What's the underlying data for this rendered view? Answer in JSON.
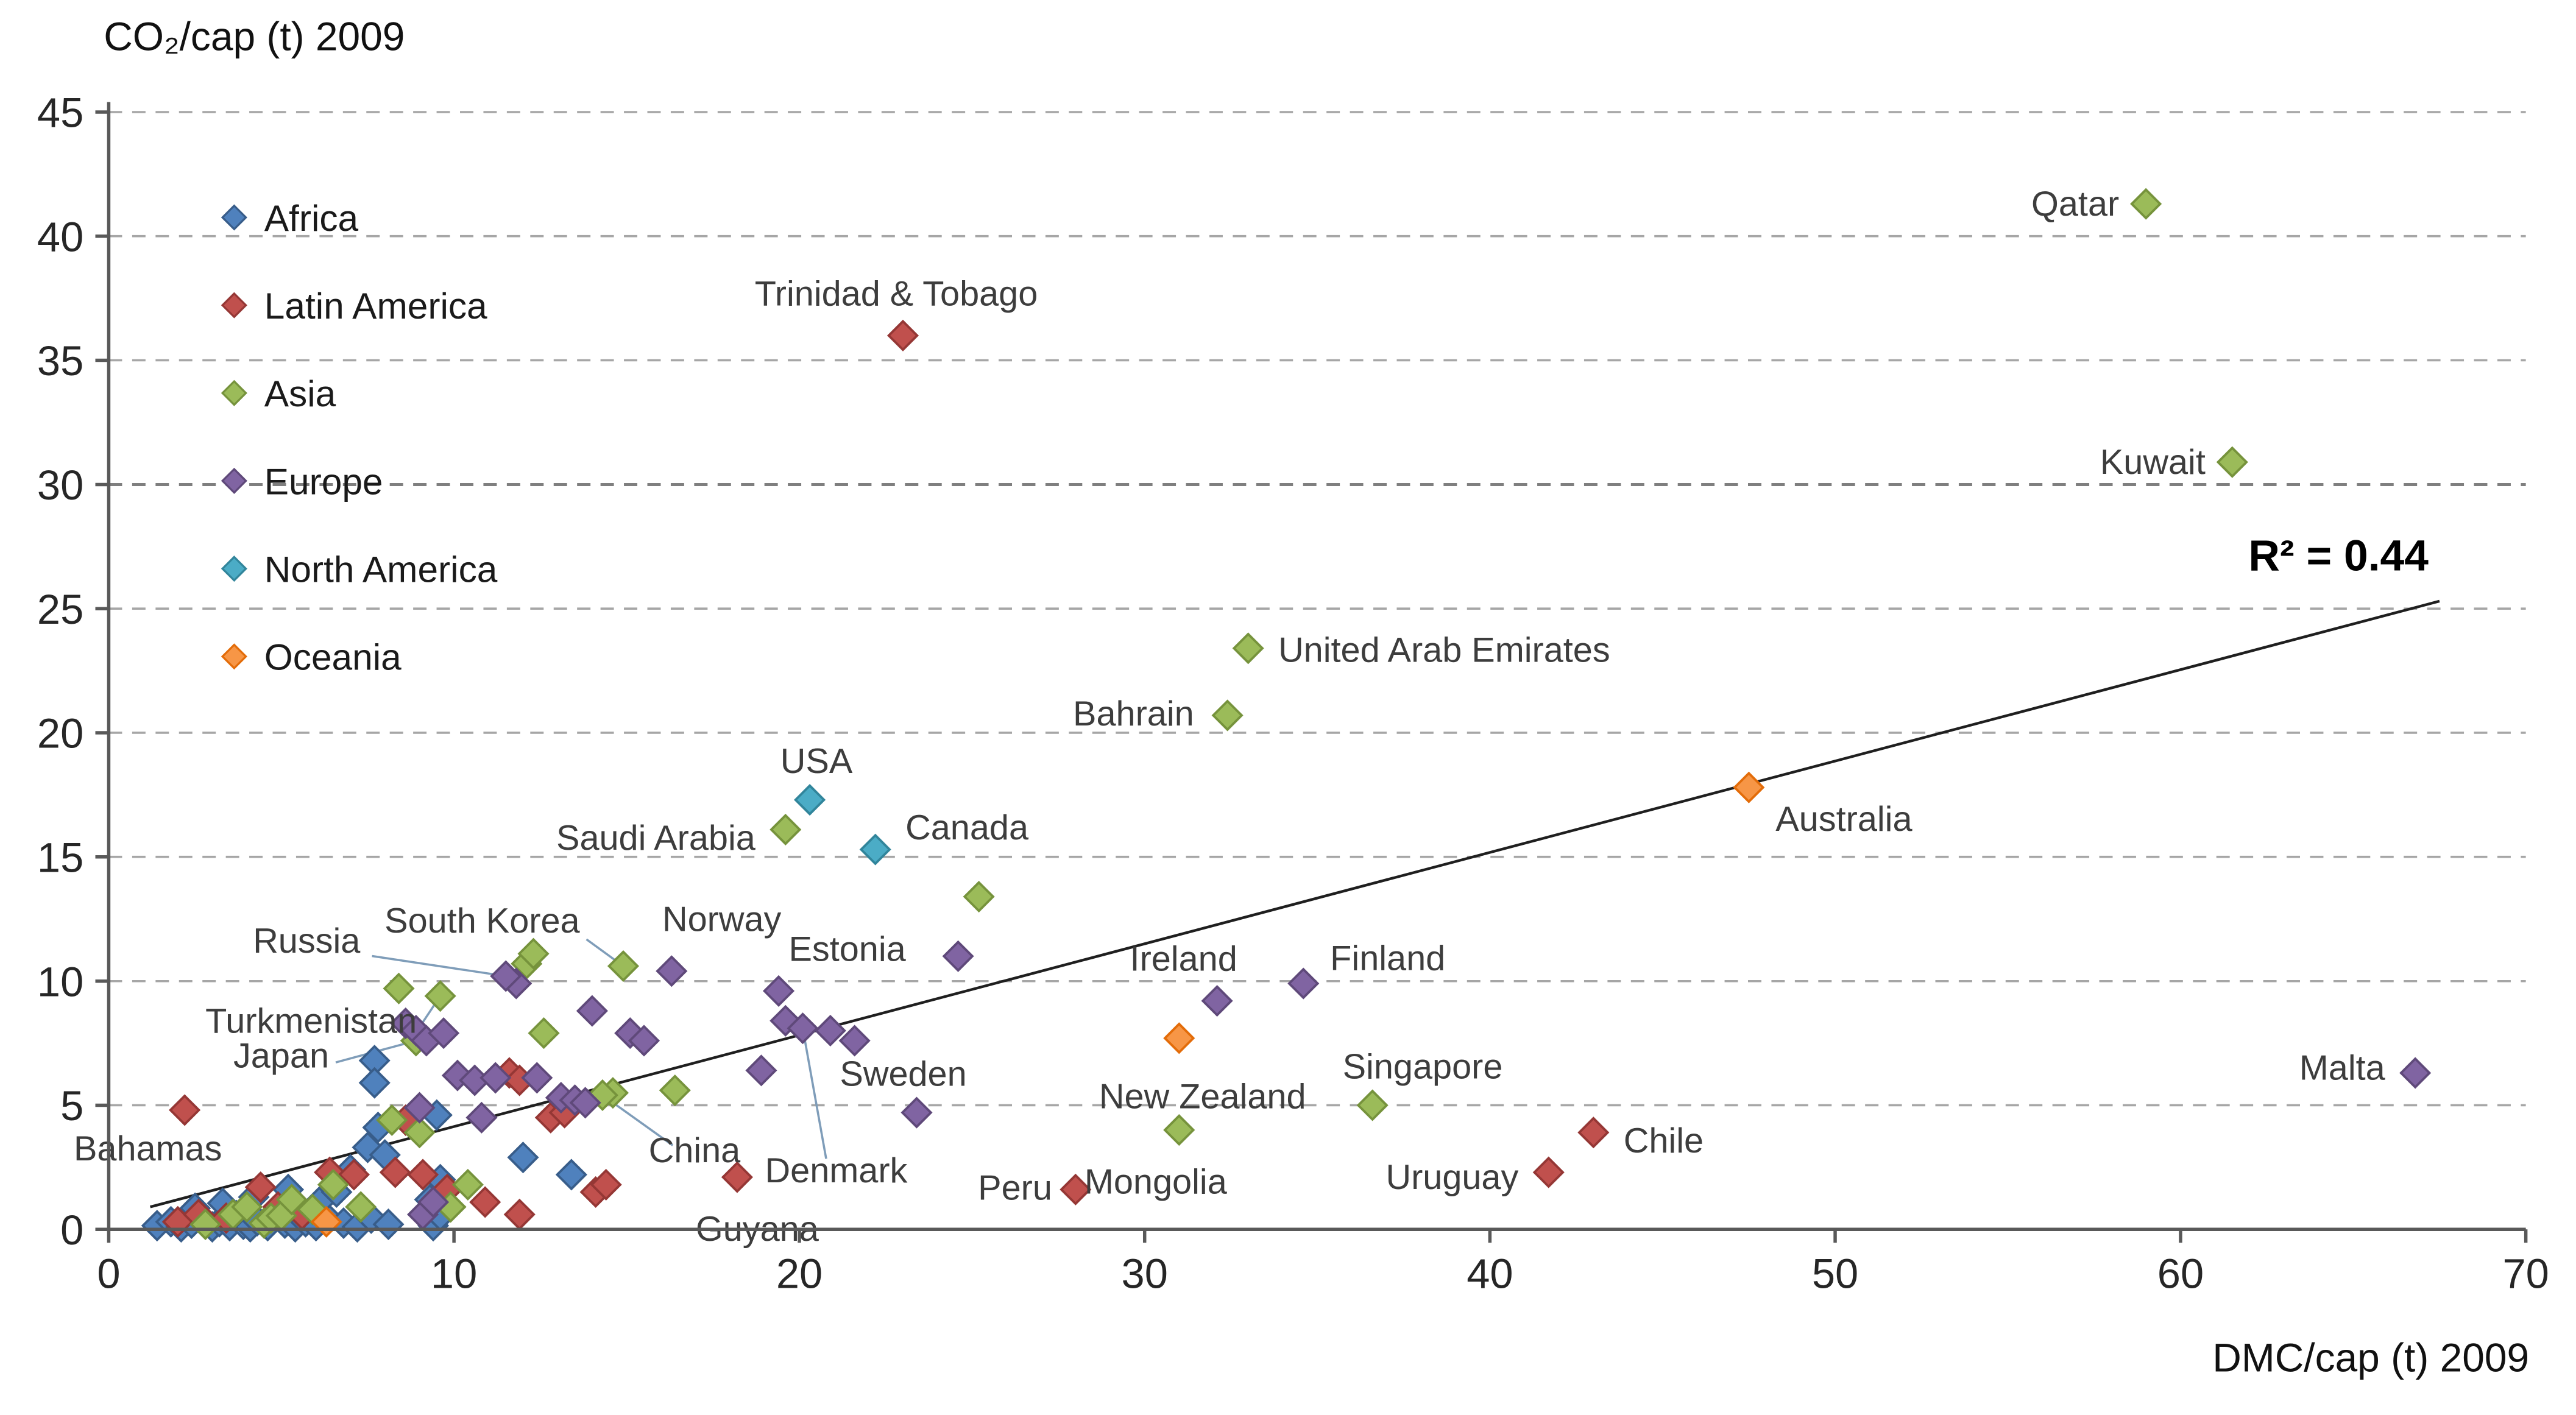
{
  "page": {
    "background": "#ffffff"
  },
  "chart_data": {
    "type": "scatter",
    "title": "CO₂/cap (t) 2009",
    "xlabel": "DMC/cap (t) 2009",
    "r2_label": "R² = 0.44",
    "xlim": [
      0,
      70
    ],
    "ylim": [
      0,
      45
    ],
    "xticks": [
      0,
      10,
      20,
      30,
      40,
      50,
      60,
      70
    ],
    "yticks": [
      0,
      5,
      10,
      15,
      20,
      25,
      30,
      35,
      40,
      45
    ],
    "grid": "horizontal-dashed",
    "legend_position": "top-left-inside",
    "trendline": {
      "x1": 1.2,
      "y1": 0.9,
      "x2": 67.5,
      "y2": 25.3,
      "color": "#1f1f1f"
    },
    "series": [
      {
        "name": "Africa",
        "color": "#4F81BD",
        "border": "#385D8A",
        "points": [
          [
            1.4,
            0.15
          ],
          [
            1.8,
            0.3
          ],
          [
            2.1,
            0.1
          ],
          [
            2.4,
            0.25
          ],
          [
            2.7,
            0.45
          ],
          [
            3.0,
            0.1
          ],
          [
            3.2,
            0.3
          ],
          [
            3.5,
            0.15
          ],
          [
            3.7,
            0.55
          ],
          [
            3.9,
            0.2
          ],
          [
            4.1,
            0.1
          ],
          [
            4.3,
            0.35
          ],
          [
            4.6,
            0.15
          ],
          [
            4.8,
            0.65
          ],
          [
            5.1,
            0.25
          ],
          [
            5.4,
            0.1
          ],
          [
            5.7,
            0.3
          ],
          [
            6.0,
            0.15
          ],
          [
            6.3,
            0.5
          ],
          [
            6.8,
            0.25
          ],
          [
            7.2,
            0.1
          ],
          [
            7.6,
            0.45
          ],
          [
            8.1,
            0.2
          ],
          [
            9.4,
            0.15
          ],
          [
            9.6,
            0.55
          ],
          [
            2.5,
            0.85
          ],
          [
            3.3,
            1.05
          ],
          [
            4.2,
            1.3
          ],
          [
            5.2,
            1.6
          ],
          [
            6.1,
            1.1
          ],
          [
            6.6,
            1.5
          ],
          [
            7.0,
            2.4
          ],
          [
            7.5,
            3.3
          ],
          [
            7.8,
            4.1
          ],
          [
            8.0,
            3.0
          ],
          [
            9.3,
            1.2
          ],
          [
            9.6,
            2.0
          ],
          [
            12.0,
            2.9
          ],
          [
            13.4,
            2.2
          ],
          [
            7.7,
            6.8
          ],
          [
            7.7,
            5.9
          ],
          [
            9.5,
            4.6
          ]
        ]
      },
      {
        "name": "Latin America",
        "color": "#C0504D",
        "border": "#953735",
        "points": [
          [
            2.0,
            0.3
          ],
          [
            2.6,
            0.6
          ],
          [
            3.4,
            0.45
          ],
          [
            4.4,
            1.7
          ],
          [
            4.9,
            0.9
          ],
          [
            5.6,
            0.6
          ],
          [
            6.4,
            2.3
          ],
          [
            7.1,
            2.2
          ],
          [
            8.3,
            2.3
          ],
          [
            8.6,
            4.4
          ],
          [
            9.1,
            2.2
          ],
          [
            9.8,
            1.6
          ],
          [
            10.9,
            1.1
          ],
          [
            11.9,
            0.6
          ],
          [
            12.8,
            4.5
          ],
          [
            13.2,
            4.7
          ],
          [
            14.1,
            1.5
          ],
          [
            14.4,
            1.8
          ],
          [
            11.6,
            6.3
          ],
          [
            11.9,
            6.0
          ],
          {
            "x": 2.2,
            "y": 4.8,
            "label": "Bahamas",
            "ldx": -22,
            "ldy": 30,
            "anchor": "middle"
          },
          {
            "x": 23,
            "y": 36,
            "label": "Trinidad & Tobago",
            "ldx": -4,
            "ldy": -18,
            "anchor": "middle"
          },
          {
            "x": 18.2,
            "y": 2.1,
            "label": "Guyana",
            "ldx": 12,
            "ldy": 38,
            "anchor": "middle"
          },
          {
            "x": 28,
            "y": 1.6,
            "label": "Peru",
            "ldx": -14,
            "ldy": 6,
            "anchor": "end"
          },
          {
            "x": 41.7,
            "y": 2.3,
            "label": "Uruguay",
            "ldx": -18,
            "ldy": 10,
            "anchor": "end"
          },
          {
            "x": 43,
            "y": 3.9,
            "label": "Chile",
            "ldx": 18,
            "ldy": 12,
            "anchor": "start"
          }
        ]
      },
      {
        "name": "Asia",
        "color": "#9BBB59",
        "border": "#76933C",
        "points": [
          [
            2.8,
            0.2
          ],
          [
            3.6,
            0.6
          ],
          [
            4.0,
            0.9
          ],
          [
            4.5,
            0.25
          ],
          [
            4.7,
            0.45
          ],
          [
            5.0,
            0.55
          ],
          [
            5.3,
            1.2
          ],
          [
            5.9,
            0.8
          ],
          [
            6.5,
            1.8
          ],
          [
            7.3,
            0.9
          ],
          [
            8.2,
            4.4
          ],
          [
            8.4,
            9.7
          ],
          [
            9.0,
            3.9
          ],
          [
            9.9,
            0.9
          ],
          [
            10.4,
            1.8
          ],
          [
            12.1,
            10.7
          ],
          [
            12.3,
            11.1
          ],
          [
            12.6,
            7.9
          ],
          [
            14.6,
            5.5
          ],
          [
            16.4,
            5.6
          ],
          [
            25.2,
            13.4
          ],
          {
            "x": 59,
            "y": 41.3,
            "label": "Qatar",
            "ldx": -16,
            "ldy": 7,
            "anchor": "end"
          },
          {
            "x": 61.5,
            "y": 30.9,
            "label": "Kuwait",
            "ldx": -16,
            "ldy": 7,
            "anchor": "end"
          },
          {
            "x": 33,
            "y": 23.4,
            "label": "United Arab Emirates",
            "ldx": 18,
            "ldy": 8,
            "anchor": "start"
          },
          {
            "x": 32.4,
            "y": 20.7,
            "label": "Bahrain",
            "ldx": -20,
            "ldy": 6,
            "anchor": "end"
          },
          {
            "x": 19.6,
            "y": 16.1,
            "label": "Saudi Arabia",
            "ldx": -18,
            "ldy": 12,
            "anchor": "end"
          },
          {
            "x": 14.9,
            "y": 10.6,
            "label": "South Korea",
            "ldx": -26,
            "ldy": -20,
            "anchor": "end",
            "leader": [
              -22,
              -16
            ]
          },
          {
            "x": 36.6,
            "y": 5.0,
            "label": "Singapore",
            "ldx": 30,
            "ldy": -16,
            "anchor": "middle"
          },
          {
            "x": 31,
            "y": 4.0,
            "label": "Mongolia",
            "ldx": -14,
            "ldy": 38,
            "anchor": "middle"
          },
          {
            "x": 9.6,
            "y": 9.4,
            "label": "Turkmenistan",
            "ldx": -14,
            "ldy": 22,
            "anchor": "end",
            "leader": [
              -12,
              18
            ]
          },
          {
            "x": 8.9,
            "y": 7.6,
            "label": "Japan",
            "ldx": -52,
            "ldy": 16,
            "anchor": "end",
            "leader": [
              -48,
              13
            ]
          },
          {
            "x": 14.3,
            "y": 5.4,
            "label": "China",
            "ldx": 55,
            "ldy": 40,
            "anchor": "middle",
            "leader": [
              42,
              30
            ]
          }
        ]
      },
      {
        "name": "Europe",
        "color": "#8064A2",
        "border": "#5F497A",
        "points": [
          [
            8.6,
            8.3
          ],
          [
            8.9,
            8.0
          ],
          [
            9.2,
            7.6
          ],
          [
            9.7,
            7.9
          ],
          [
            10.1,
            6.2
          ],
          [
            10.6,
            6.0
          ],
          [
            11.2,
            6.1
          ],
          [
            11.8,
            9.9
          ],
          [
            12.4,
            6.1
          ],
          [
            13.1,
            5.3
          ],
          [
            13.5,
            5.2
          ],
          [
            14.0,
            8.8
          ],
          [
            15.1,
            7.9
          ],
          [
            15.5,
            7.6
          ],
          [
            18.9,
            6.4
          ],
          [
            19.6,
            8.4
          ],
          [
            20.9,
            8.0
          ],
          [
            21.6,
            7.6
          ],
          [
            24.6,
            11.0
          ],
          [
            9.0,
            4.9
          ],
          [
            10.8,
            4.5
          ],
          [
            9.1,
            0.6
          ],
          [
            9.4,
            1.1
          ],
          [
            13.8,
            5.1
          ],
          {
            "x": 11.5,
            "y": 10.2,
            "label": "Russia",
            "ldx": -87,
            "ldy": -14,
            "anchor": "end",
            "leader": [
              -80,
              -12
            ]
          },
          {
            "x": 16.3,
            "y": 10.4,
            "label": "Norway",
            "ldx": 30,
            "ldy": -24,
            "anchor": "middle"
          },
          {
            "x": 19.4,
            "y": 9.6,
            "label": "Estonia",
            "ldx": 6,
            "ldy": -18,
            "anchor": "start"
          },
          {
            "x": 20.1,
            "y": 8.1,
            "label": "Denmark",
            "ldx": 20,
            "ldy": 92,
            "anchor": "middle",
            "leader": [
              14,
              78
            ]
          },
          {
            "x": 23.4,
            "y": 4.7,
            "label": "Sweden",
            "ldx": -8,
            "ldy": -16,
            "anchor": "middle"
          },
          {
            "x": 32.1,
            "y": 9.2,
            "label": "Ireland",
            "ldx": -20,
            "ldy": -18,
            "anchor": "middle"
          },
          {
            "x": 34.6,
            "y": 9.9,
            "label": "Finland",
            "ldx": 16,
            "ldy": -8,
            "anchor": "start"
          },
          {
            "x": 66.8,
            "y": 6.3,
            "label": "Malta",
            "ldx": -18,
            "ldy": 4,
            "anchor": "end"
          }
        ]
      },
      {
        "name": "North America",
        "color": "#4BACC6",
        "border": "#31859B",
        "points": [
          {
            "x": 20.3,
            "y": 17.3,
            "label": "USA",
            "ldx": 4,
            "ldy": -16,
            "anchor": "middle"
          },
          {
            "x": 22.2,
            "y": 15.3,
            "label": "Canada",
            "ldx": 18,
            "ldy": -6,
            "anchor": "start"
          }
        ]
      },
      {
        "name": "Oceania",
        "color": "#F79646",
        "border": "#E36C09",
        "points": [
          [
            6.3,
            0.3
          ],
          {
            "x": 47.5,
            "y": 17.8,
            "label": "Australia",
            "ldx": 16,
            "ldy": 26,
            "anchor": "start"
          },
          {
            "x": 31,
            "y": 7.7,
            "label": "New Zealand",
            "ldx": 14,
            "ldy": 42,
            "anchor": "middle"
          }
        ]
      }
    ]
  }
}
